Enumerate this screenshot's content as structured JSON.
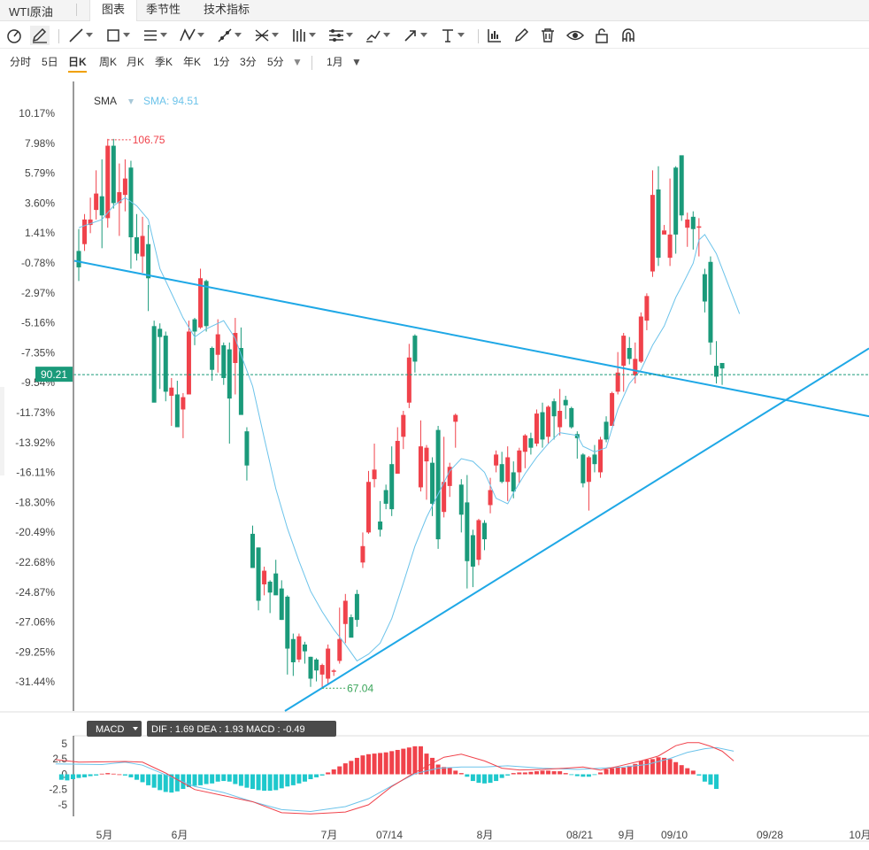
{
  "tabbar": {
    "symbol": "WTI原油",
    "tabs": [
      {
        "label": "图表",
        "active": true
      },
      {
        "label": "季节性",
        "active": false
      },
      {
        "label": "技术指标",
        "active": false
      }
    ]
  },
  "toolbar": {
    "icons": [
      "cursor-icon",
      "pencil-icon",
      "line-icon",
      "rectangle-icon",
      "parallel-lines-icon",
      "zigzag-icon",
      "ray-icon",
      "cross-lines-icon",
      "bars-icon",
      "settings-lines-icon",
      "brush-icon",
      "arrow-icon",
      "text-icon",
      "chart-icon",
      "pen-icon",
      "trash-icon",
      "eye-icon",
      "unlock-icon",
      "magnet-icon"
    ]
  },
  "periods": {
    "items": [
      {
        "label": "分时",
        "active": false
      },
      {
        "label": "5日",
        "active": false
      },
      {
        "label": "日K",
        "active": true
      },
      {
        "label": "周K",
        "active": false
      },
      {
        "label": "月K",
        "active": false
      },
      {
        "label": "季K",
        "active": false
      },
      {
        "label": "年K",
        "active": false
      },
      {
        "label": "1分",
        "active": false
      },
      {
        "label": "3分",
        "active": false
      },
      {
        "label": "5分",
        "active": false
      }
    ],
    "range_label": "1月"
  },
  "colors": {
    "up": "#f0424b",
    "down": "#1a9a7a",
    "sma": "#6cc3ea",
    "trend": "#1fa8e6",
    "price": "#1a9a7a",
    "dif": "#f0424b",
    "dea": "#6cc3ea",
    "macd_neg": "#1ec8cc"
  },
  "chart_data": {
    "type": "candlestick",
    "sma_label": "SMA",
    "sma_value_label": "SMA: 94.51",
    "y_ticks": [
      "10.17%",
      "7.98%",
      "5.79%",
      "3.60%",
      "1.41%",
      "-0.78%",
      "-2.97%",
      "-5.16%",
      "-7.35%",
      "-9.54%",
      "-11.73%",
      "-13.92%",
      "-16.11%",
      "-18.30%",
      "-20.49%",
      "-22.68%",
      "-24.87%",
      "-27.06%",
      "-29.25%",
      "-31.44%"
    ],
    "y_range_pct": [
      -31.44,
      10.17
    ],
    "x_ticks": [
      "5月",
      "6月",
      "7月",
      "07/14",
      "8月",
      "08/21",
      "9月",
      "09/10",
      "09/28",
      "10月"
    ],
    "current_price": "90.21",
    "high_label": "106.75",
    "low_label": "67.04",
    "candles": [
      [
        0.1,
        -1.1,
        1.7,
        -2.1
      ],
      [
        0.6,
        2.4,
        2.8,
        0.1
      ],
      [
        2.0,
        2.4,
        4.0,
        1.4
      ],
      [
        3.1,
        4.3,
        6.0,
        2.4
      ],
      [
        4.1,
        2.7,
        6.8,
        0.3
      ],
      [
        2.5,
        7.8,
        8.3,
        1.8
      ],
      [
        7.8,
        3.6,
        8.3,
        3.2
      ],
      [
        3.6,
        4.4,
        6.5,
        1.2
      ],
      [
        4.2,
        5.4,
        6.8,
        3.0
      ],
      [
        6.2,
        1.1,
        6.7,
        -1.2
      ],
      [
        1.1,
        -0.1,
        2.8,
        -0.6
      ],
      [
        -0.3,
        1.2,
        2.6,
        -1.5
      ],
      [
        0.6,
        -1.9,
        2.0,
        -4.3
      ],
      [
        -5.4,
        -11.0,
        -5.0,
        -10.2
      ],
      [
        -5.6,
        -6.2,
        -5.2,
        -10.0
      ],
      [
        -6.1,
        -10.2,
        -5.8,
        -10.9
      ],
      [
        -10.5,
        -9.9,
        -9.2,
        -12.7
      ],
      [
        -10.4,
        -12.8,
        -9.4,
        -12.6
      ],
      [
        -11.5,
        -10.6,
        -10.3,
        -13.6
      ],
      [
        -10.4,
        -5.8,
        -5.0,
        -10.3
      ],
      [
        -4.9,
        -5.8,
        -4.8,
        -6.8
      ],
      [
        -5.5,
        -1.9,
        -1.2,
        -5.6
      ],
      [
        -2.1,
        -5.4,
        -2.0,
        -5.8
      ],
      [
        -7.0,
        -8.6,
        -6.9,
        -9.4
      ],
      [
        -7.5,
        -6.0,
        -4.9,
        -8.8
      ],
      [
        -6.8,
        -9.2,
        -6.6,
        -9.7
      ],
      [
        -7.1,
        -10.7,
        -6.6,
        -14.0
      ],
      [
        -8.1,
        -5.9,
        -4.8,
        -10.4
      ],
      [
        -7.0,
        -11.9,
        -5.5,
        -11.0
      ],
      [
        -13.1,
        -15.6,
        -12.8,
        -16.7
      ],
      [
        -20.6,
        -23.1,
        -20.0,
        -22.8
      ],
      [
        -21.6,
        -25.5,
        -21.6,
        -26.2
      ],
      [
        -24.3,
        -23.3,
        -23.0,
        -25.1
      ],
      [
        -24.1,
        -24.9,
        -24.0,
        -26.4
      ],
      [
        -23.5,
        -25.1,
        -22.5,
        -24.6
      ],
      [
        -24.6,
        -26.9,
        -24.0,
        -26.9
      ],
      [
        -25.2,
        -29.0,
        -25.1,
        -30.9
      ],
      [
        -28.3,
        -30.0,
        -27.9,
        -31.0
      ],
      [
        -29.8,
        -28.1,
        -27.9,
        -30.0
      ],
      [
        -28.7,
        -29.2,
        -28.5,
        -30.1
      ],
      [
        -29.6,
        -31.2,
        -29.6,
        -31.8
      ],
      [
        -29.8,
        -30.6,
        -29.7,
        -31.4
      ],
      [
        -30.9,
        -30.2,
        -30.1,
        -31.9
      ],
      [
        -31.2,
        -29.0,
        -28.7,
        -31.6
      ],
      [
        -30.7,
        -30.6,
        -30.5,
        -31.0
      ],
      [
        -29.9,
        -28.3,
        -26.0,
        -30.1
      ],
      [
        -27.2,
        -25.5,
        -25.0,
        -28.6
      ],
      [
        -26.7,
        -28.2,
        -26.5,
        -28.1
      ],
      [
        -25.0,
        -26.9,
        -24.7,
        -27.4
      ],
      [
        -22.7,
        -21.5,
        -20.5,
        -23.1
      ],
      [
        -20.5,
        -16.8,
        -16.0,
        -20.6
      ],
      [
        -16.6,
        -15.9,
        -14.0,
        -17.2
      ],
      [
        -19.7,
        -20.3,
        -18.2,
        -20.8
      ],
      [
        -17.4,
        -18.4,
        -17.0,
        -18.8
      ],
      [
        -15.5,
        -18.8,
        -14.2,
        -19.3
      ],
      [
        -16.2,
        -13.8,
        -12.8,
        -15.8
      ],
      [
        -13.5,
        -11.9,
        -11.6,
        -14.4
      ],
      [
        -11.0,
        -7.7,
        -6.7,
        -11.4
      ],
      [
        -6.1,
        -8.0,
        -6.0,
        -8.8
      ],
      [
        -17.2,
        -14.2,
        -12.3,
        -17.5
      ],
      [
        -15.3,
        -14.3,
        -14.1,
        -18.1
      ],
      [
        -15.4,
        -18.4,
        -15.0,
        -19.3
      ],
      [
        -13.0,
        -21.0,
        -12.7,
        -21.7
      ],
      [
        -19.0,
        -16.8,
        -13.5,
        -19.4
      ],
      [
        -17.1,
        -15.7,
        -15.4,
        -17.9
      ],
      [
        -12.4,
        -11.9,
        -11.8,
        -14.3
      ],
      [
        -17.0,
        -19.2,
        -16.6,
        -20.5
      ],
      [
        -18.3,
        -22.6,
        -16.3,
        -24.6
      ],
      [
        -20.7,
        -23.0,
        -20.3,
        -24.5
      ],
      [
        -22.5,
        -19.6,
        -19.5,
        -22.9
      ],
      [
        -19.8,
        -21.0,
        -19.6,
        -21.8
      ],
      [
        -18.5,
        -17.4,
        -16.5,
        -19.1
      ],
      [
        -15.6,
        -14.8,
        -14.5,
        -16.1
      ],
      [
        -15.5,
        -16.8,
        -14.6,
        -16.9
      ],
      [
        -16.8,
        -15.0,
        -14.2,
        -18.2
      ],
      [
        -16.1,
        -17.5,
        -15.3,
        -18.0
      ],
      [
        -16.1,
        -14.5,
        -14.3,
        -16.9
      ],
      [
        -14.6,
        -13.4,
        -13.3,
        -15.8
      ],
      [
        -13.6,
        -14.3,
        -13.2,
        -14.8
      ],
      [
        -14.0,
        -11.8,
        -11.5,
        -14.2
      ],
      [
        -11.7,
        -13.7,
        -11.0,
        -14.3
      ],
      [
        -13.5,
        -11.3,
        -11.2,
        -14.0
      ],
      [
        -10.9,
        -12.0,
        -10.7,
        -13.7
      ],
      [
        -12.8,
        -11.6,
        -10.0,
        -13.4
      ],
      [
        -10.8,
        -11.2,
        -10.5,
        -12.2
      ],
      [
        -11.4,
        -12.8,
        -11.3,
        -12.9
      ],
      [
        -13.3,
        -13.6,
        -13.1,
        -15.1
      ],
      [
        -14.8,
        -16.9,
        -14.7,
        -17.2
      ],
      [
        -16.8,
        -15.0,
        -14.9,
        -18.9
      ],
      [
        -14.8,
        -15.5,
        -14.1,
        -16.1
      ],
      [
        -16.1,
        -13.7,
        -13.5,
        -16.5
      ],
      [
        -12.4,
        -13.7,
        -12.0,
        -13.9
      ],
      [
        -12.7,
        -10.3,
        -10.2,
        -12.4
      ],
      [
        -10.2,
        -8.8,
        -7.3,
        -10.4
      ],
      [
        -8.3,
        -6.1,
        -5.9,
        -10.2
      ],
      [
        -7.0,
        -7.8,
        -6.2,
        -8.2
      ],
      [
        -9.0,
        -7.8,
        -6.6,
        -9.6
      ],
      [
        -8.0,
        -4.7,
        -4.4,
        -8.1
      ],
      [
        -5.0,
        -3.2,
        -3.0,
        -5.7
      ],
      [
        -1.4,
        4.2,
        6.0,
        -1.8
      ],
      [
        4.6,
        -0.4,
        6.3,
        -1.0
      ],
      [
        1.3,
        1.6,
        1.6,
        2.0
      ],
      [
        -0.4,
        1.3,
        5.4,
        -1.0
      ],
      [
        6.2,
        1.3,
        6.3,
        -0.1
      ],
      [
        7.1,
        2.7,
        6.9,
        2.3
      ],
      [
        1.8,
        2.4,
        2.9,
        0.4
      ],
      [
        2.6,
        1.7,
        3.0,
        0.2
      ],
      [
        1.8,
        1.9,
        2.5,
        -0.3
      ],
      [
        -1.6,
        -3.6,
        -1.2,
        -4.4
      ],
      [
        -0.7,
        -6.6,
        -0.3,
        -7.5
      ],
      [
        -8.3,
        -9.1,
        -6.5,
        -9.6
      ],
      [
        -8.1,
        -8.5,
        -8.4,
        -9.7
      ]
    ],
    "sma": [
      [
        0,
        1.8
      ],
      [
        4,
        2.4
      ],
      [
        6,
        3.4
      ],
      [
        8,
        4.0
      ],
      [
        10,
        3.4
      ],
      [
        12,
        2.4
      ],
      [
        14,
        -1.2
      ],
      [
        16,
        -3.0
      ],
      [
        18,
        -4.8
      ],
      [
        20,
        -6.2
      ],
      [
        22,
        -5.6
      ],
      [
        25,
        -5.0
      ],
      [
        27,
        -6.3
      ],
      [
        28,
        -7.5
      ],
      [
        30,
        -9.8
      ],
      [
        32,
        -13.6
      ],
      [
        34,
        -17.3
      ],
      [
        36,
        -20.2
      ],
      [
        38,
        -22.6
      ],
      [
        40,
        -24.8
      ],
      [
        42,
        -26.3
      ],
      [
        44,
        -27.6
      ],
      [
        46,
        -28.7
      ],
      [
        48,
        -29.9
      ],
      [
        50,
        -29.4
      ],
      [
        52,
        -28.6
      ],
      [
        54,
        -26.8
      ],
      [
        56,
        -24.2
      ],
      [
        58,
        -21.5
      ],
      [
        60,
        -19.4
      ],
      [
        62,
        -17.7
      ],
      [
        64,
        -16.0
      ],
      [
        66,
        -15.1
      ],
      [
        68,
        -15.3
      ],
      [
        70,
        -16.1
      ],
      [
        72,
        -18.0
      ],
      [
        74,
        -18.4
      ],
      [
        75,
        -17.6
      ],
      [
        77,
        -16.2
      ],
      [
        79,
        -15.0
      ],
      [
        81,
        -14.0
      ],
      [
        83,
        -13.2
      ],
      [
        86,
        -13.4
      ],
      [
        87,
        -14.2
      ],
      [
        89,
        -14.6
      ],
      [
        91,
        -14.3
      ],
      [
        93,
        -11.5
      ],
      [
        95,
        -9.6
      ],
      [
        97,
        -8.6
      ],
      [
        99,
        -6.8
      ],
      [
        101,
        -5.4
      ],
      [
        103,
        -3.3
      ],
      [
        104,
        -2.5
      ],
      [
        106,
        -0.8
      ],
      [
        107,
        0.9
      ],
      [
        108,
        1.3
      ],
      [
        110,
        -0.1
      ],
      [
        112,
        -2.3
      ],
      [
        114,
        -4.5
      ]
    ],
    "macd": {
      "label": "MACD",
      "values_label": "DIF : 1.69  DEA : 1.93  MACD : -0.49",
      "y_ticks": [
        "5",
        "2.5",
        "0",
        "-2.5",
        "-5"
      ],
      "ylim": [
        -6.5,
        6.5
      ],
      "hist": [
        -0.9,
        -1.0,
        -0.8,
        -0.6,
        -0.5,
        -0.3,
        -0.2,
        0.1,
        0.2,
        0.1,
        0,
        -0.2,
        -0.5,
        -0.9,
        -1.3,
        -1.8,
        -2.2,
        -2.6,
        -2.9,
        -3.0,
        -2.8,
        -2.4,
        -2.1,
        -1.9,
        -1.8,
        -1.6,
        -1.5,
        -1.2,
        -1.1,
        -1.2,
        -1.6,
        -1.9,
        -2.2,
        -2.4,
        -2.6,
        -2.7,
        -2.7,
        -2.6,
        -2.3,
        -2.0,
        -1.8,
        -1.5,
        -1.2,
        -0.8,
        -0.5,
        -0.2,
        0.3,
        0.8,
        1.3,
        1.8,
        2.2,
        2.7,
        3.1,
        3.3,
        3.4,
        3.5,
        3.6,
        3.8,
        4.0,
        4.2,
        4.4,
        4.6,
        4.6,
        3.4,
        2.7,
        1.6,
        1.2,
        1.1,
        0.6,
        0.2,
        -0.4,
        -1.1,
        -1.4,
        -1.5,
        -1.4,
        -1.1,
        -0.6,
        -0.2,
        0.2,
        0.3,
        0.3,
        0.4,
        0.5,
        0.6,
        0.6,
        0.5,
        0.5,
        0.2,
        -0.1,
        -0.3,
        -0.4,
        -0.4,
        -0.1,
        0.3,
        0.8,
        1.0,
        1.1,
        1.1,
        1.4,
        1.7,
        2.2,
        2.4,
        2.5,
        2.8,
        2.7,
        2.5,
        2.0,
        1.5,
        1.0,
        0.6,
        -0.2,
        -1.2,
        -1.7,
        -2.4
      ],
      "dif": [
        [
          -4,
          2.4
        ],
        [
          0,
          2.0
        ],
        [
          8,
          2.1
        ],
        [
          11,
          2.0
        ],
        [
          15,
          0.2
        ],
        [
          20,
          -2.5
        ],
        [
          25,
          -3.5
        ],
        [
          30,
          -4.5
        ],
        [
          35,
          -6.3
        ],
        [
          40,
          -6.5
        ],
        [
          46,
          -6.2
        ],
        [
          50,
          -5.0
        ],
        [
          54,
          -2.0
        ],
        [
          58,
          0.3
        ],
        [
          63,
          2.8
        ],
        [
          66,
          3.3
        ],
        [
          70,
          2.2
        ],
        [
          73,
          1.0
        ],
        [
          76,
          0.7
        ],
        [
          80,
          0.8
        ],
        [
          84,
          1.0
        ],
        [
          87,
          1.2
        ],
        [
          90,
          0.7
        ],
        [
          93,
          1.3
        ],
        [
          97,
          2.2
        ],
        [
          100,
          3.0
        ],
        [
          103,
          4.7
        ],
        [
          105,
          5.2
        ],
        [
          107,
          5.2
        ],
        [
          109,
          4.6
        ],
        [
          111,
          3.8
        ],
        [
          113,
          2.2
        ]
      ],
      "dea": [
        [
          -4,
          1.7
        ],
        [
          4,
          1.6
        ],
        [
          8,
          2.0
        ],
        [
          11,
          1.5
        ],
        [
          15,
          -0.1
        ],
        [
          20,
          -2.0
        ],
        [
          25,
          -3.0
        ],
        [
          30,
          -4.5
        ],
        [
          35,
          -5.8
        ],
        [
          40,
          -6.1
        ],
        [
          46,
          -5.3
        ],
        [
          50,
          -4.0
        ],
        [
          54,
          -1.9
        ],
        [
          58,
          0.1
        ],
        [
          62,
          1.0
        ],
        [
          66,
          1.2
        ],
        [
          70,
          1.2
        ],
        [
          74,
          1.4
        ],
        [
          80,
          1.0
        ],
        [
          86,
          0.8
        ],
        [
          90,
          1.0
        ],
        [
          94,
          1.2
        ],
        [
          98,
          1.6
        ],
        [
          102,
          2.6
        ],
        [
          105,
          3.6
        ],
        [
          108,
          4.2
        ],
        [
          110,
          4.4
        ],
        [
          113,
          3.8
        ]
      ]
    }
  }
}
